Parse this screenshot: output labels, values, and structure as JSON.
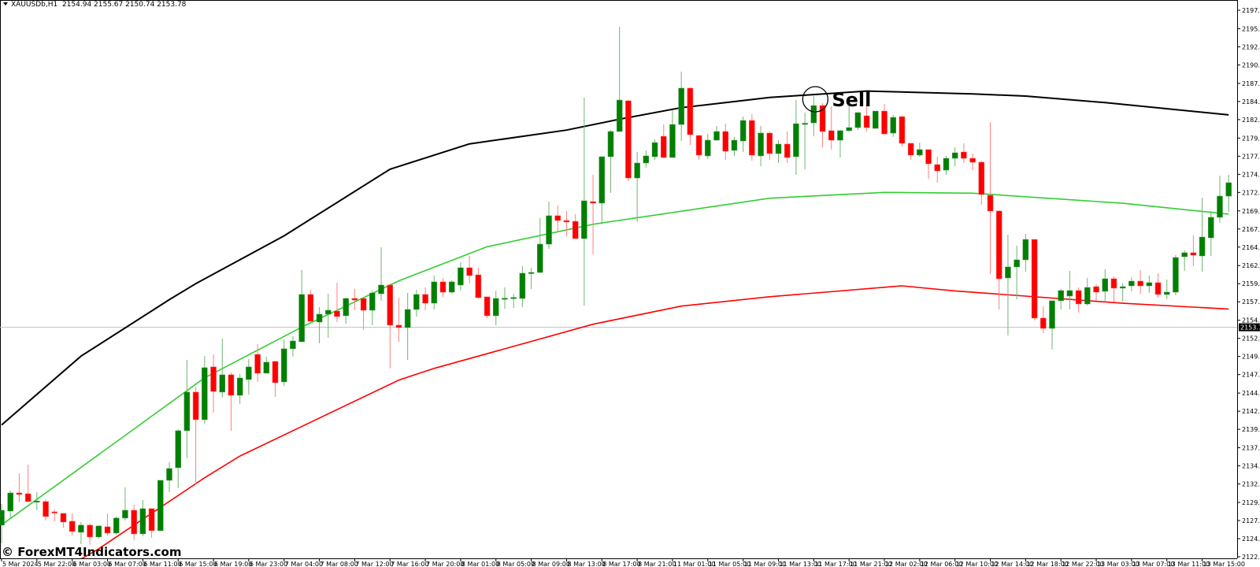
{
  "header": {
    "symbol": "XAUUSDb,H1",
    "ohlc": "2154.94 2155.67 2150.74 2153.78"
  },
  "watermark": "© ForexMT4Indicators.com",
  "annotation": {
    "label": "Sell",
    "bar": 92
  },
  "current_price": {
    "value": 2153.78,
    "label": "2153.78"
  },
  "colors": {
    "bull": "#008000",
    "bear": "#ff0000",
    "upper_line": "#000000",
    "middle_line": "#32cd32",
    "lower_line": "#ff0000",
    "price_line": "#c0c0c0"
  },
  "chart_data": {
    "type": "candlestick",
    "title": "",
    "ylim": [
      2122.1,
      2197.55
    ],
    "y_ticks": [
      "2197.55",
      "2195.00",
      "2192.50",
      "2190.00",
      "2187.45",
      "2184.95",
      "2182.45",
      "2179.90",
      "2177.40",
      "2174.90",
      "2172.40",
      "2169.85",
      "2167.35",
      "2164.85",
      "2162.30",
      "2159.80",
      "2157.30",
      "2154.75",
      "2152.25",
      "2149.75",
      "2147.25",
      "2144.70",
      "2142.20",
      "2139.70",
      "2137.15",
      "2134.65",
      "2132.15",
      "2129.60",
      "2127.10",
      "2124.60",
      "2122.10"
    ],
    "x_ticks": [
      "5 Mar 2024",
      "5 Mar 22:00",
      "6 Mar 03:00",
      "6 Mar 07:00",
      "6 Mar 11:00",
      "6 Mar 15:00",
      "6 Mar 19:00",
      "6 Mar 23:00",
      "7 Mar 04:00",
      "7 Mar 08:00",
      "7 Mar 12:00",
      "7 Mar 16:00",
      "7 Mar 20:00",
      "8 Mar 01:00",
      "8 Mar 05:00",
      "8 Mar 09:00",
      "8 Mar 13:00",
      "8 Mar 17:00",
      "8 Mar 21:00",
      "11 Mar 01:00",
      "11 Mar 05:00",
      "11 Mar 09:00",
      "11 Mar 13:00",
      "11 Mar 17:00",
      "11 Mar 21:00",
      "12 Mar 02:00",
      "12 Mar 06:00",
      "12 Mar 10:00",
      "12 Mar 14:00",
      "12 Mar 18:00",
      "12 Mar 22:00",
      "13 Mar 03:00",
      "13 Mar 07:00",
      "13 Mar 11:00",
      "13 Mar 15:00"
    ],
    "bars_per_x_tick": 4,
    "grid": false,
    "candles_ohlc": [
      [
        2126.46,
        2129.39,
        2123.96,
        2128.52
      ],
      [
        2128.41,
        2131.24,
        2127.44,
        2130.91
      ],
      [
        2130.91,
        2133.63,
        2129.61,
        2130.7
      ],
      [
        2130.8,
        2134.83,
        2129.72,
        2129.72
      ],
      [
        2129.72,
        2131.02,
        2128.52,
        2129.8
      ],
      [
        2129.72,
        2130.04,
        2127.11,
        2127.65
      ],
      [
        2128.3,
        2128.63,
        2127.0,
        2128.2
      ],
      [
        2128.09,
        2128.09,
        2126.13,
        2126.89
      ],
      [
        2127.0,
        2128.09,
        2125.04,
        2125.59
      ],
      [
        2125.48,
        2126.89,
        2123.85,
        2126.46
      ],
      [
        2126.46,
        2126.67,
        2123.74,
        2124.83
      ],
      [
        2124.83,
        2126.46,
        2124.61,
        2126.35
      ],
      [
        2126.24,
        2128.09,
        2125.04,
        2125.37
      ],
      [
        2125.37,
        2127.65,
        2125.15,
        2127.44
      ],
      [
        2127.44,
        2131.67,
        2127.11,
        2128.52
      ],
      [
        2128.52,
        2129.28,
        2124.39,
        2125.26
      ],
      [
        2125.26,
        2129.93,
        2124.93,
        2128.74
      ],
      [
        2128.74,
        2128.74,
        2124.72,
        2125.7
      ],
      [
        2125.7,
        2132.65,
        2125.7,
        2132.65
      ],
      [
        2132.65,
        2135.15,
        2131.02,
        2134.28
      ],
      [
        2134.39,
        2139.72,
        2131.57,
        2139.5
      ],
      [
        2139.5,
        2149.28,
        2135.7,
        2144.83
      ],
      [
        2144.83,
        2145.59,
        2132.11,
        2141.02
      ],
      [
        2141.02,
        2149.83,
        2140.48,
        2148.2
      ],
      [
        2148.31,
        2150.04,
        2142.0,
        2144.93
      ],
      [
        2144.83,
        2152.22,
        2144.07,
        2147.22
      ],
      [
        2147.22,
        2147.54,
        2139.5,
        2144.39
      ],
      [
        2144.39,
        2147.33,
        2143.2,
        2146.78
      ],
      [
        2146.57,
        2149.39,
        2144.5,
        2148.31
      ],
      [
        2150.04,
        2151.46,
        2146.24,
        2147.44
      ],
      [
        2147.44,
        2149.72,
        2147.44,
        2148.96
      ],
      [
        2149.07,
        2149.07,
        2144.18,
        2146.13
      ],
      [
        2146.24,
        2152.11,
        2145.7,
        2150.81
      ],
      [
        2150.81,
        2152.54,
        2149.72,
        2151.89
      ],
      [
        2151.78,
        2161.68,
        2151.78,
        2158.31
      ],
      [
        2158.31,
        2158.96,
        2154.61,
        2154.61
      ],
      [
        2154.5,
        2156.57,
        2151.57,
        2155.59
      ],
      [
        2155.59,
        2158.41,
        2152.33,
        2156.13
      ],
      [
        2156.02,
        2159.94,
        2154.5,
        2155.26
      ],
      [
        2155.37,
        2157.87,
        2154.28,
        2157.76
      ],
      [
        2157.76,
        2159.07,
        2156.13,
        2157.54
      ],
      [
        2157.76,
        2157.76,
        2153.41,
        2156.13
      ],
      [
        2156.13,
        2158.85,
        2154.07,
        2158.52
      ],
      [
        2158.41,
        2164.83,
        2157.44,
        2159.61
      ],
      [
        2159.61,
        2159.83,
        2148.09,
        2154.07
      ],
      [
        2154.07,
        2157.87,
        2151.78,
        2153.74
      ],
      [
        2153.74,
        2158.52,
        2149.28,
        2156.24
      ],
      [
        2156.24,
        2158.96,
        2155.26,
        2158.31
      ],
      [
        2158.31,
        2159.28,
        2156.13,
        2157.11
      ],
      [
        2157.11,
        2160.92,
        2156.24,
        2160.05
      ],
      [
        2160.05,
        2160.59,
        2157.98,
        2158.63
      ],
      [
        2158.63,
        2160.26,
        2158.41,
        2160.05
      ],
      [
        2159.61,
        2162.76,
        2158.85,
        2162.0
      ],
      [
        2162.0,
        2163.63,
        2159.83,
        2160.92
      ],
      [
        2161.02,
        2162.0,
        2157.76,
        2157.87
      ],
      [
        2157.98,
        2157.98,
        2155.05,
        2155.37
      ],
      [
        2155.37,
        2158.85,
        2154.07,
        2157.76
      ],
      [
        2157.7,
        2159.28,
        2156.35,
        2157.8
      ],
      [
        2157.8,
        2158.41,
        2156.46,
        2157.9
      ],
      [
        2157.76,
        2162.22,
        2156.57,
        2161.24
      ],
      [
        2161.24,
        2162.0,
        2159.07,
        2161.35
      ],
      [
        2161.35,
        2168.85,
        2161.24,
        2165.26
      ],
      [
        2165.26,
        2171.13,
        2164.61,
        2169.18
      ],
      [
        2169.18,
        2170.59,
        2166.89,
        2168.52
      ],
      [
        2168.52,
        2169.83,
        2166.35,
        2168.31
      ],
      [
        2168.41,
        2169.39,
        2166.02,
        2166.02
      ],
      [
        2166.02,
        2185.48,
        2156.78,
        2171.24
      ],
      [
        2171.13,
        2174.83,
        2163.85,
        2170.92
      ],
      [
        2170.92,
        2177.33,
        2167.98,
        2177.33
      ],
      [
        2177.33,
        2181.02,
        2172.33,
        2180.81
      ],
      [
        2180.81,
        2195.26,
        2180.81,
        2185.15
      ],
      [
        2185.05,
        2185.15,
        2173.96,
        2174.39
      ],
      [
        2174.39,
        2177.98,
        2168.31,
        2176.46
      ],
      [
        2176.46,
        2178.2,
        2175.81,
        2177.44
      ],
      [
        2177.33,
        2179.72,
        2176.89,
        2179.28
      ],
      [
        2180.15,
        2181.78,
        2177.22,
        2177.22
      ],
      [
        2177.22,
        2183.74,
        2177.22,
        2181.78
      ],
      [
        2181.78,
        2189.07,
        2179.5,
        2186.79
      ],
      [
        2186.79,
        2186.89,
        2178.96,
        2180.37
      ],
      [
        2180.26,
        2180.26,
        2176.89,
        2177.55
      ],
      [
        2177.44,
        2180.48,
        2177.0,
        2179.61
      ],
      [
        2179.61,
        2181.57,
        2179.61,
        2180.81
      ],
      [
        2180.81,
        2181.89,
        2176.89,
        2178.09
      ],
      [
        2178.2,
        2180.05,
        2177.44,
        2179.61
      ],
      [
        2179.5,
        2182.87,
        2177.98,
        2182.33
      ],
      [
        2182.33,
        2183.2,
        2176.78,
        2177.55
      ],
      [
        2177.44,
        2181.57,
        2176.02,
        2180.59
      ],
      [
        2180.59,
        2180.81,
        2176.89,
        2177.76
      ],
      [
        2177.76,
        2179.61,
        2176.46,
        2179.07
      ],
      [
        2179.07,
        2180.81,
        2176.46,
        2177.22
      ],
      [
        2177.33,
        2185.15,
        2174.83,
        2181.89
      ],
      [
        2181.85,
        2183.42,
        2175.59,
        2181.95
      ],
      [
        2182.0,
        2185.7,
        2180.15,
        2184.39
      ],
      [
        2184.39,
        2184.72,
        2178.63,
        2180.81
      ],
      [
        2180.92,
        2184.29,
        2178.31,
        2179.61
      ],
      [
        2179.61,
        2181.02,
        2177.22,
        2180.92
      ],
      [
        2180.92,
        2184.29,
        2180.81,
        2181.35
      ],
      [
        2181.35,
        2183.42,
        2181.02,
        2183.42
      ],
      [
        2182.98,
        2184.61,
        2180.81,
        2181.35
      ],
      [
        2181.24,
        2183.63,
        2181.24,
        2183.63
      ],
      [
        2183.63,
        2184.61,
        2180.37,
        2180.48
      ],
      [
        2180.59,
        2183.09,
        2180.05,
        2182.76
      ],
      [
        2182.87,
        2182.87,
        2178.74,
        2179.18
      ],
      [
        2179.18,
        2179.18,
        2176.89,
        2177.55
      ],
      [
        2177.55,
        2179.28,
        2177.33,
        2178.31
      ],
      [
        2178.31,
        2178.31,
        2174.29,
        2176.35
      ],
      [
        2176.24,
        2177.33,
        2173.74,
        2175.37
      ],
      [
        2175.48,
        2177.44,
        2174.83,
        2177.11
      ],
      [
        2177.11,
        2178.63,
        2176.02,
        2177.87
      ],
      [
        2177.98,
        2179.18,
        2176.46,
        2177.11
      ],
      [
        2177.11,
        2177.76,
        2175.48,
        2176.57
      ],
      [
        2176.57,
        2176.78,
        2170.7,
        2172.11
      ],
      [
        2172.0,
        2182.11,
        2161.13,
        2169.83
      ],
      [
        2169.83,
        2169.94,
        2156.24,
        2160.48
      ],
      [
        2160.59,
        2166.57,
        2152.65,
        2162.11
      ],
      [
        2162.11,
        2165.05,
        2157.65,
        2163.09
      ],
      [
        2163.09,
        2166.68,
        2161.46,
        2165.91
      ],
      [
        2165.91,
        2165.91,
        2154.72,
        2155.05
      ],
      [
        2155.05,
        2156.68,
        2152.98,
        2153.63
      ],
      [
        2153.63,
        2157.44,
        2150.7,
        2157.44
      ],
      [
        2157.44,
        2159.07,
        2156.24,
        2158.85
      ],
      [
        2158.09,
        2161.57,
        2156.24,
        2158.85
      ],
      [
        2158.85,
        2159.28,
        2155.81,
        2157.0
      ],
      [
        2157.0,
        2160.59,
        2156.78,
        2159.28
      ],
      [
        2159.39,
        2159.72,
        2157.44,
        2158.63
      ],
      [
        2158.74,
        2161.79,
        2157.44,
        2160.48
      ],
      [
        2160.48,
        2160.81,
        2157.33,
        2159.18
      ],
      [
        2159.18,
        2159.83,
        2157.33,
        2159.39
      ],
      [
        2159.5,
        2160.7,
        2158.74,
        2160.15
      ],
      [
        2160.15,
        2161.68,
        2158.41,
        2159.5
      ],
      [
        2159.5,
        2160.92,
        2158.52,
        2159.94
      ],
      [
        2159.94,
        2161.24,
        2157.87,
        2158.31
      ],
      [
        2158.31,
        2160.37,
        2157.65,
        2158.63
      ],
      [
        2158.63,
        2163.74,
        2158.2,
        2163.41
      ],
      [
        2163.52,
        2164.39,
        2161.57,
        2164.07
      ],
      [
        2164.07,
        2166.46,
        2162.22,
        2163.74
      ],
      [
        2163.63,
        2171.68,
        2161.46,
        2166.24
      ],
      [
        2166.13,
        2169.83,
        2163.63,
        2168.96
      ],
      [
        2168.96,
        2174.72,
        2168.2,
        2171.89
      ],
      [
        2171.89,
        2174.83,
        2169.72,
        2173.74
      ]
    ],
    "lines": [
      {
        "color": "#000000",
        "points": [
          [
            0,
            2140.3
          ],
          [
            9,
            2149.8
          ],
          [
            19,
            2157.6
          ],
          [
            22,
            2159.8
          ],
          [
            32,
            2166.4
          ],
          [
            44,
            2175.6
          ],
          [
            53,
            2179.1
          ],
          [
            64,
            2181.0
          ],
          [
            70,
            2182.5
          ],
          [
            77,
            2184.1
          ],
          [
            87,
            2185.5
          ],
          [
            98,
            2186.4
          ],
          [
            110,
            2186.0
          ],
          [
            116,
            2185.7
          ],
          [
            125,
            2184.8
          ],
          [
            139,
            2183.1
          ]
        ]
      },
      {
        "color": "#32cd32",
        "points": [
          [
            0,
            2126.5
          ],
          [
            11,
            2136.2
          ],
          [
            23,
            2146.8
          ],
          [
            34,
            2153.8
          ],
          [
            45,
            2160.2
          ],
          [
            55,
            2164.9
          ],
          [
            67,
            2168.0
          ],
          [
            87,
            2171.6
          ],
          [
            100,
            2172.4
          ],
          [
            110,
            2172.3
          ],
          [
            127,
            2170.9
          ],
          [
            139,
            2169.4
          ]
        ]
      },
      {
        "color": "#ff0000",
        "points": [
          [
            9,
            2121.8
          ],
          [
            11,
            2123.2
          ],
          [
            23,
            2133.0
          ],
          [
            27,
            2136.0
          ],
          [
            45,
            2146.5
          ],
          [
            49,
            2148.1
          ],
          [
            67,
            2154.2
          ],
          [
            77,
            2156.7
          ],
          [
            87,
            2158.0
          ],
          [
            102,
            2159.5
          ],
          [
            108,
            2158.8
          ],
          [
            127,
            2157.1
          ],
          [
            139,
            2156.3
          ]
        ]
      }
    ]
  }
}
